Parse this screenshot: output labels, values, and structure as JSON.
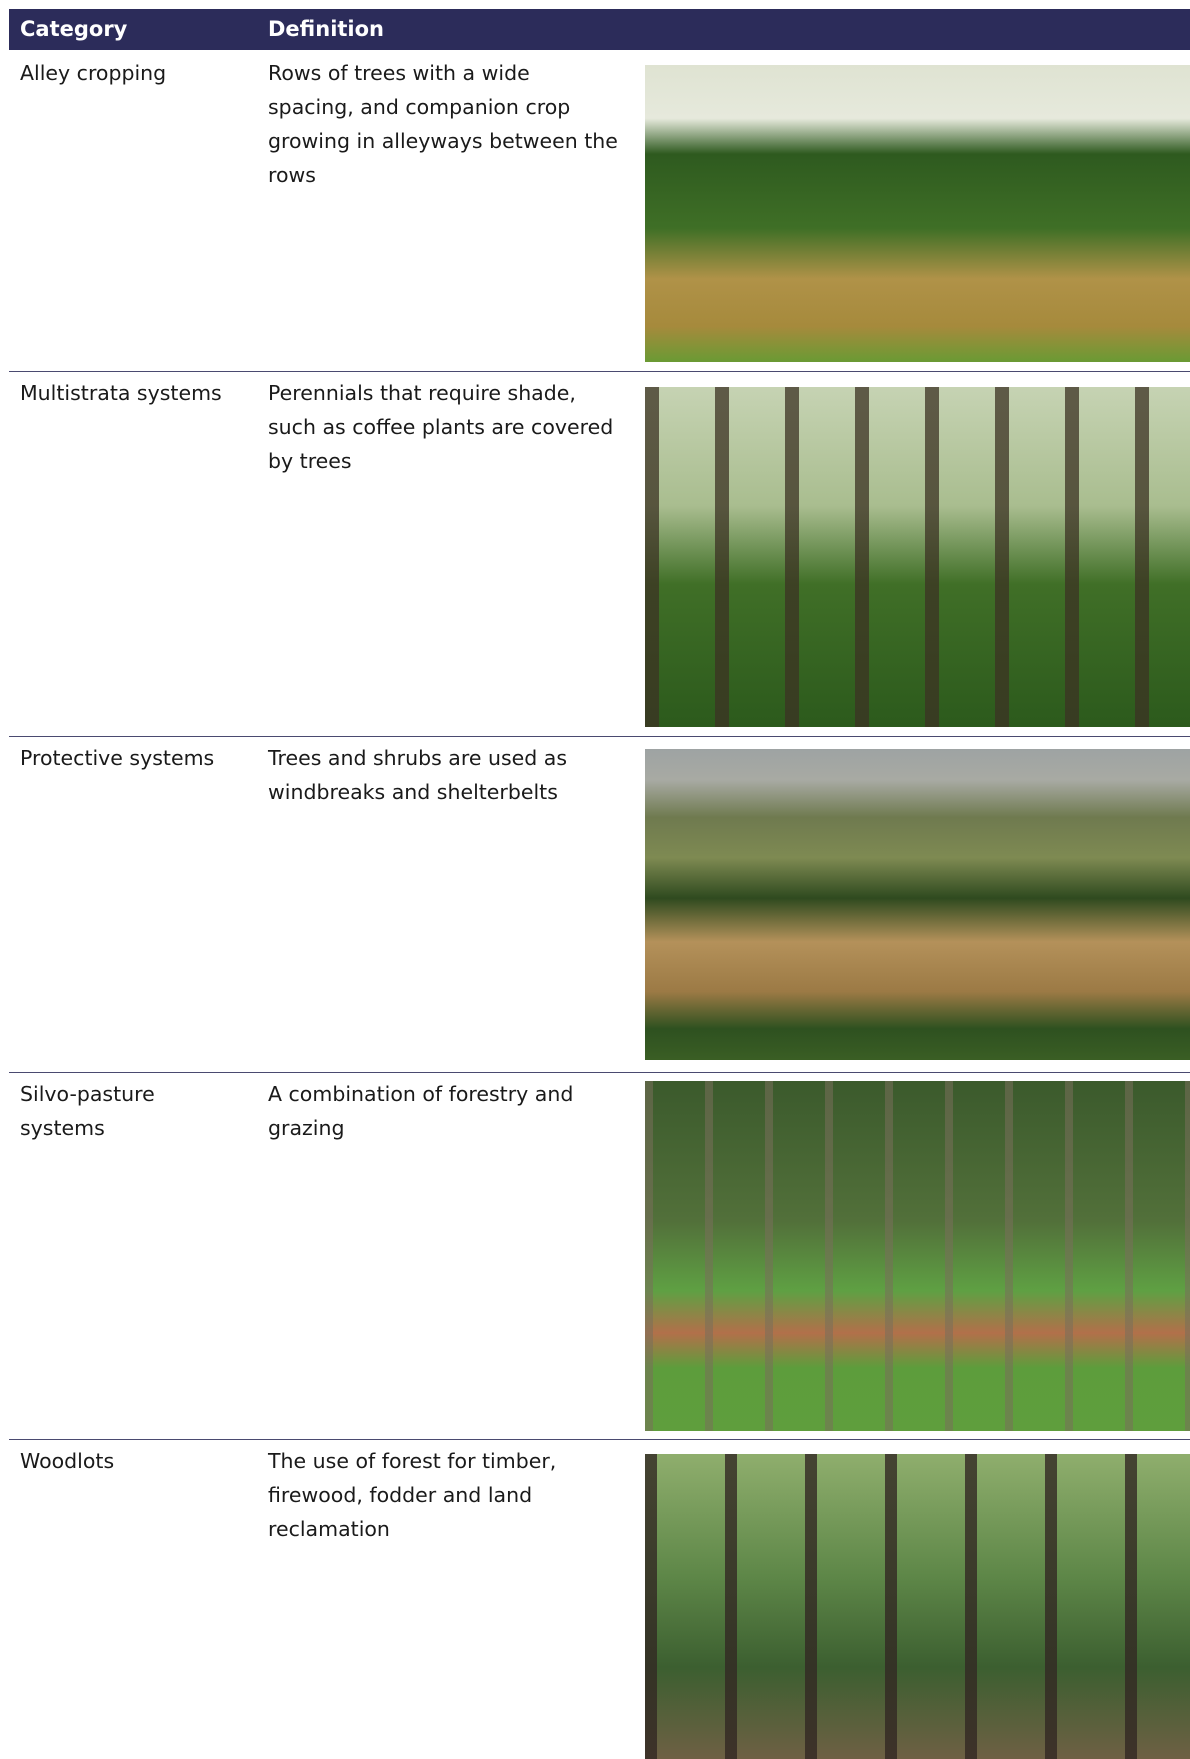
{
  "table": {
    "header": [
      "Category",
      "Definition"
    ],
    "rows": [
      [
        "Alley cropping",
        "Rows of trees with a wide spacing, and companion crop growing in alleyways between the rows"
      ],
      [
        "Multistrata systems",
        "Perennials that require shade, such as coffee plants are covered by trees"
      ],
      [
        "Protective systems",
        "Trees and shrubs are used as windbreaks and shelterbelts"
      ],
      [
        "Silvo-pasture systems",
        "A combination of forestry and grazing"
      ],
      [
        "Woodlots",
        "The use of forest for timber, firewood, fodder and land reclamation"
      ]
    ]
  }
}
